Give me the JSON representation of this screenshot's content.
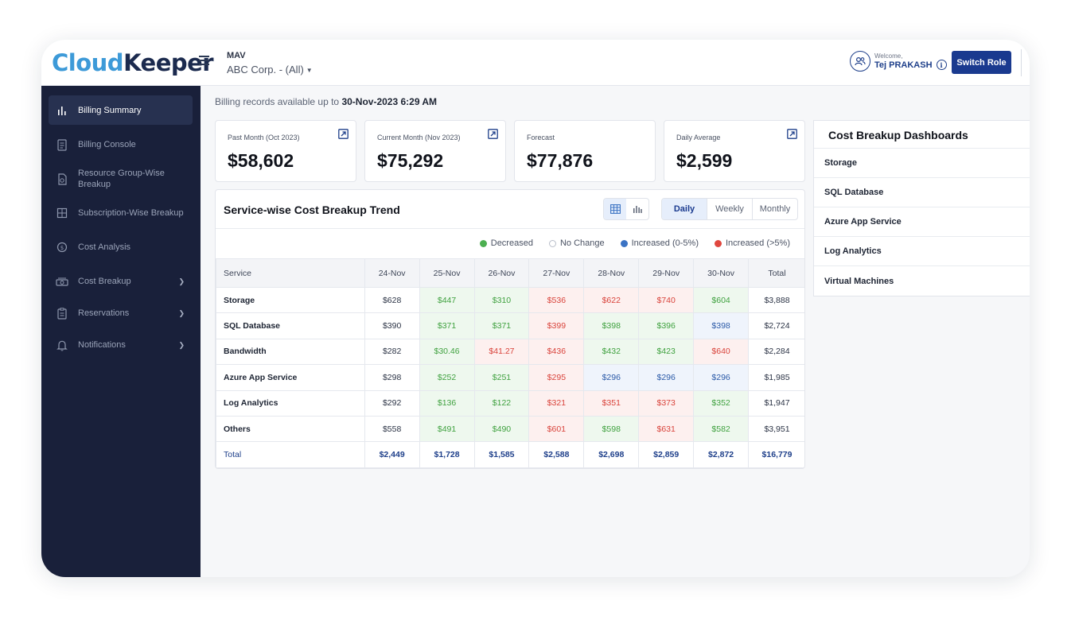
{
  "header": {
    "logo_cloud": "Cloud",
    "logo_keeper": "Keeper",
    "org_code": "MAV",
    "org_name": "ABC Corp. - (All)",
    "welcome_label": "Welcome,",
    "user_name": "Tej PRAKASH",
    "switch_role": "Switch Role"
  },
  "sidebar": {
    "items": [
      {
        "label": "Billing Summary",
        "icon": "bar-chart-icon",
        "active": true
      },
      {
        "label": "Billing Console",
        "icon": "document-icon"
      },
      {
        "label": "Resource Group-Wise Breakup",
        "icon": "report-icon"
      },
      {
        "label": "Subscription-Wise Breakup",
        "icon": "grid-icon"
      },
      {
        "label": "Cost Analysis",
        "icon": "cost-analysis-icon"
      },
      {
        "label": "Cost Breakup",
        "icon": "cost-breakup-icon",
        "expandable": true
      },
      {
        "label": "Reservations",
        "icon": "clipboard-icon",
        "expandable": true
      },
      {
        "label": "Notifications",
        "icon": "bell-icon",
        "expandable": true
      }
    ]
  },
  "records": {
    "prefix": "Billing records available up to",
    "date": "30-Nov-2023 6:29 AM"
  },
  "cards": [
    {
      "label": "Past Month (Oct 2023)",
      "value": "$58,602",
      "link": true
    },
    {
      "label": "Current Month (Nov 2023)",
      "value": "$75,292",
      "link": true
    },
    {
      "label": "Forecast",
      "value": "$77,876",
      "link": false
    },
    {
      "label": "Daily Average",
      "value": "$2,599",
      "link": true
    }
  ],
  "trend": {
    "title": "Service-wise Cost Breakup Trend",
    "periods": [
      "Daily",
      "Weekly",
      "Monthly"
    ],
    "selected_period": "Daily",
    "legend": [
      {
        "label": "Decreased",
        "color": "#4caf50"
      },
      {
        "label": "No Change",
        "color": "#ffffff"
      },
      {
        "label": "Increased (0-5%)",
        "color": "#3b73c4"
      },
      {
        "label": "Increased (>5%)",
        "color": "#e0473f"
      }
    ],
    "columns": [
      "Service",
      "24-Nov",
      "25-Nov",
      "26-Nov",
      "27-Nov",
      "28-Nov",
      "29-Nov",
      "30-Nov",
      "Total"
    ],
    "rows": [
      {
        "service": "Storage",
        "cells": [
          [
            "$628",
            "n"
          ],
          [
            "$447",
            "d"
          ],
          [
            "$310",
            "d"
          ],
          [
            "$536",
            "u"
          ],
          [
            "$622",
            "u"
          ],
          [
            "$740",
            "u"
          ],
          [
            "$604",
            "d"
          ],
          [
            "$3,888",
            "n"
          ]
        ]
      },
      {
        "service": "SQL Database",
        "cells": [
          [
            "$390",
            "n"
          ],
          [
            "$371",
            "d"
          ],
          [
            "$371",
            "d"
          ],
          [
            "$399",
            "u"
          ],
          [
            "$398",
            "d"
          ],
          [
            "$396",
            "d"
          ],
          [
            "$398",
            "s"
          ],
          [
            "$2,724",
            "n"
          ]
        ]
      },
      {
        "service": "Bandwidth",
        "cells": [
          [
            "$282",
            "n"
          ],
          [
            "$30.46",
            "d"
          ],
          [
            "$41.27",
            "u"
          ],
          [
            "$436",
            "u"
          ],
          [
            "$432",
            "d"
          ],
          [
            "$423",
            "d"
          ],
          [
            "$640",
            "u"
          ],
          [
            "$2,284",
            "n"
          ]
        ]
      },
      {
        "service": "Azure App Service",
        "cells": [
          [
            "$298",
            "n"
          ],
          [
            "$252",
            "d"
          ],
          [
            "$251",
            "d"
          ],
          [
            "$295",
            "u"
          ],
          [
            "$296",
            "s"
          ],
          [
            "$296",
            "s"
          ],
          [
            "$296",
            "s"
          ],
          [
            "$1,985",
            "n"
          ]
        ]
      },
      {
        "service": "Log Analytics",
        "cells": [
          [
            "$292",
            "n"
          ],
          [
            "$136",
            "d"
          ],
          [
            "$122",
            "d"
          ],
          [
            "$321",
            "u"
          ],
          [
            "$351",
            "u"
          ],
          [
            "$373",
            "u"
          ],
          [
            "$352",
            "d"
          ],
          [
            "$1,947",
            "n"
          ]
        ]
      },
      {
        "service": "Others",
        "cells": [
          [
            "$558",
            "n"
          ],
          [
            "$491",
            "d"
          ],
          [
            "$490",
            "d"
          ],
          [
            "$601",
            "u"
          ],
          [
            "$598",
            "d"
          ],
          [
            "$631",
            "u"
          ],
          [
            "$582",
            "d"
          ],
          [
            "$3,951",
            "n"
          ]
        ]
      }
    ],
    "total": {
      "label": "Total",
      "values": [
        "$2,449",
        "$1,728",
        "$1,585",
        "$2,588",
        "$2,698",
        "$2,859",
        "$2,872",
        "$16,779"
      ]
    }
  },
  "dashboards": {
    "title": "Cost Breakup Dashboards",
    "items": [
      "Storage",
      "SQL Database",
      "Azure App Service",
      "Log Analytics",
      "Virtual Machines"
    ]
  },
  "colors": {
    "sidebar_bg": "#19203a",
    "accent": "#1a3a8f",
    "decreased": "#3fa13f",
    "increased": "#d9433b",
    "small_increase": "#2b5aa8"
  }
}
